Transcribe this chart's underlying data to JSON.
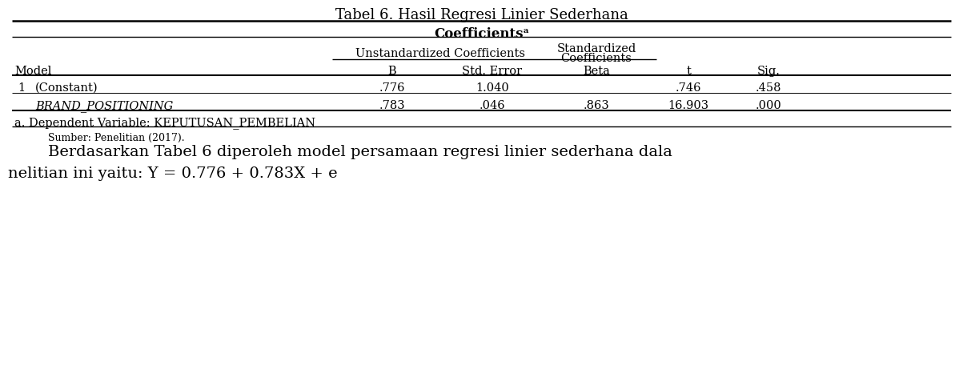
{
  "title": "Tabel 6. Hasil Regresi Linier Sederhana",
  "coefficients_label": "Coefficientsᵃ",
  "header_unstd": "Unstandardized Coefficients",
  "header_std_line1": "Standardized",
  "header_std_line2": "Coefficients",
  "col_Model": "Model",
  "col_B": "B",
  "col_StdError": "Std. Error",
  "col_Beta": "Beta",
  "col_t": "t",
  "col_Sig": "Sig.",
  "row1_num": "1",
  "row1_model": "(Constant)",
  "row1_B": ".776",
  "row1_StdError": "1.040",
  "row1_Beta": "",
  "row1_t": ".746",
  "row1_Sig": ".458",
  "row2_model": "BRAND_POSITIONING",
  "row2_B": ".783",
  "row2_StdError": ".046",
  "row2_Beta": ".863",
  "row2_t": "16.903",
  "row2_Sig": ".000",
  "footnote": "a. Dependent Variable: KEPUTUSAN_PEMBELIAN",
  "source": "Sumber: Penelitian (2017).",
  "text1": "Berdasarkan Tabel 6 diperoleh model persamaan regresi linier sederhana dala",
  "text2": "nelitian ini yaitu: Y = 0.776 + 0.783X + e",
  "bg_color": "#ffffff",
  "text_color": "#000000",
  "figwidth": 12.03,
  "figheight": 4.66,
  "dpi": 100
}
